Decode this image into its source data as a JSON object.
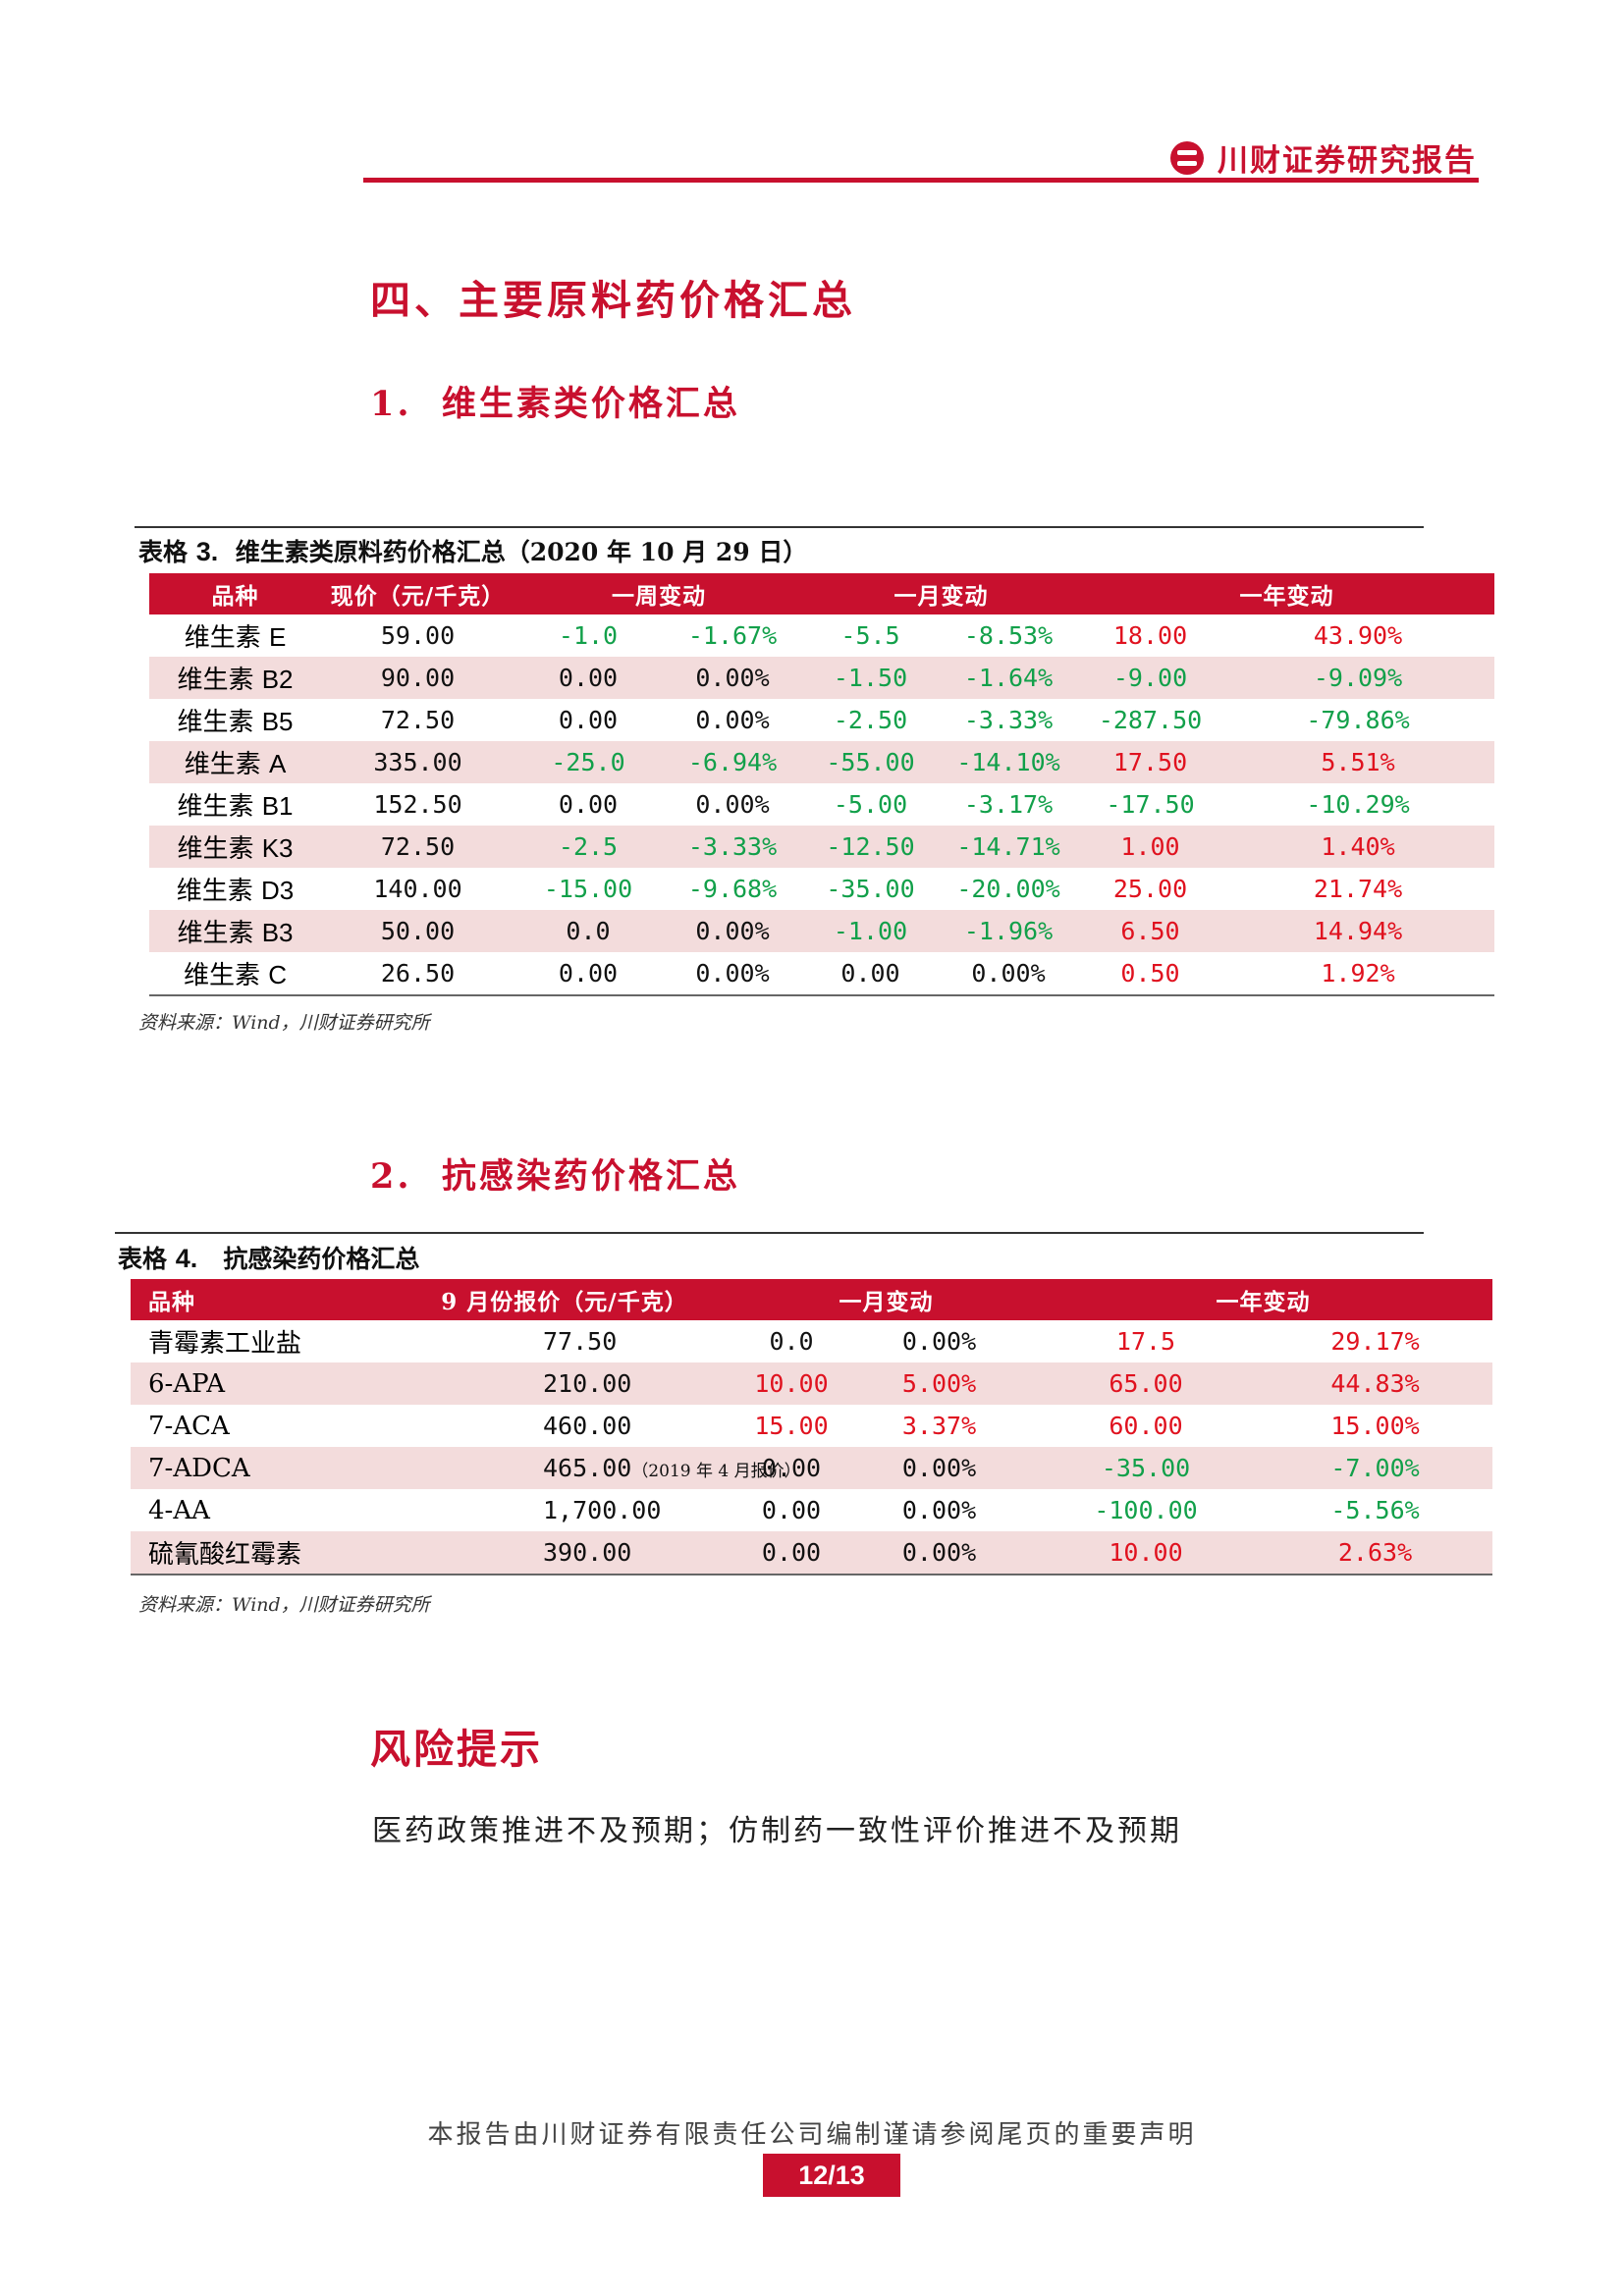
{
  "header": {
    "brand": "川财证券研究报告"
  },
  "section_title": "四、主要原料药价格汇总",
  "sub1": {
    "number": "1.",
    "title": "维生素类价格汇总"
  },
  "table3": {
    "caption_prefix": "表格",
    "caption_number": "3.",
    "caption_title": "维生素类原料药价格汇总（2020 年 10 月 29 日）",
    "headers": [
      "品种",
      "现价（元/千克）",
      "一周变动",
      "一月变动",
      "一年变动"
    ],
    "rows": [
      [
        "维生素 ",
        "E",
        "59.00",
        "-1.0",
        "-1.67%",
        "-5.5",
        "-8.53%",
        "18.00",
        "43.90%"
      ],
      [
        "维生素 ",
        "B2",
        "90.00",
        "0.00",
        "0.00%",
        "-1.50",
        "-1.64%",
        "-9.00",
        "-9.09%"
      ],
      [
        "维生素 ",
        "B5",
        "72.50",
        "0.00",
        "0.00%",
        "-2.50",
        "-3.33%",
        "-287.50",
        "-79.86%"
      ],
      [
        "维生素 ",
        "A",
        "335.00",
        "-25.0",
        "-6.94%",
        "-55.00",
        "-14.10%",
        "17.50",
        "5.51%"
      ],
      [
        "维生素 ",
        "B1",
        "152.50",
        "0.00",
        "0.00%",
        "-5.00",
        "-3.17%",
        "-17.50",
        "-10.29%"
      ],
      [
        "维生素 ",
        "K3",
        "72.50",
        "-2.5",
        "-3.33%",
        "-12.50",
        "-14.71%",
        "1.00",
        "1.40%"
      ],
      [
        "维生素 ",
        "D3",
        "140.00",
        "-15.00",
        "-9.68%",
        "-35.00",
        "-20.00%",
        "25.00",
        "21.74%"
      ],
      [
        "维生素 ",
        "B3",
        "50.00",
        "0.0",
        "0.00%",
        "-1.00",
        "-1.96%",
        "6.50",
        "14.94%"
      ],
      [
        "维生素 ",
        "C",
        "26.50",
        "0.00",
        "0.00%",
        "0.00",
        "0.00%",
        "0.50",
        "1.92%"
      ]
    ],
    "source": "资料来源：Wind，川财证券研究所"
  },
  "sub2": {
    "number": "2.",
    "title": "抗感染药价格汇总"
  },
  "table4": {
    "caption_prefix": "表格",
    "caption_number": "4.",
    "caption_title": "抗感染药价格汇总",
    "headers": [
      "品种",
      "9 月份报价（元/千克）",
      "一月变动",
      "一年变动"
    ],
    "rows": [
      [
        "青霉素工业盐",
        "77.50",
        "",
        "0.0",
        "0.00%",
        "17.5",
        "29.17%"
      ],
      [
        "6-APA",
        "210.00",
        "",
        "10.00",
        "5.00%",
        "65.00",
        "44.83%"
      ],
      [
        "7-ACA",
        "460.00",
        "",
        "15.00",
        "3.37%",
        "60.00",
        "15.00%"
      ],
      [
        "7-ADCA",
        "465.00",
        "（2019 年 4 月报价）",
        "0.00",
        "0.00%",
        "-35.00",
        "-7.00%"
      ],
      [
        "4-AA",
        "1,700.00",
        "",
        "0.00",
        "0.00%",
        "-100.00",
        "-5.56%"
      ],
      [
        "硫氰酸红霉素",
        "390.00",
        "",
        "0.00",
        "0.00%",
        "10.00",
        "2.63%"
      ]
    ],
    "source": "资料来源：Wind，川财证券研究所"
  },
  "risk": {
    "title": "风险提示",
    "text": "医药政策推进不及预期；仿制药一致性评价推进不及预期"
  },
  "footer": {
    "disclaimer": "本报告由川财证券有限责任公司编制谨请参阅尾页的重要声明",
    "page": "12/13"
  },
  "colors": {
    "brand_red": "#c8102e",
    "negative_green": "#12a04a",
    "positive_red": "#e0121f"
  }
}
